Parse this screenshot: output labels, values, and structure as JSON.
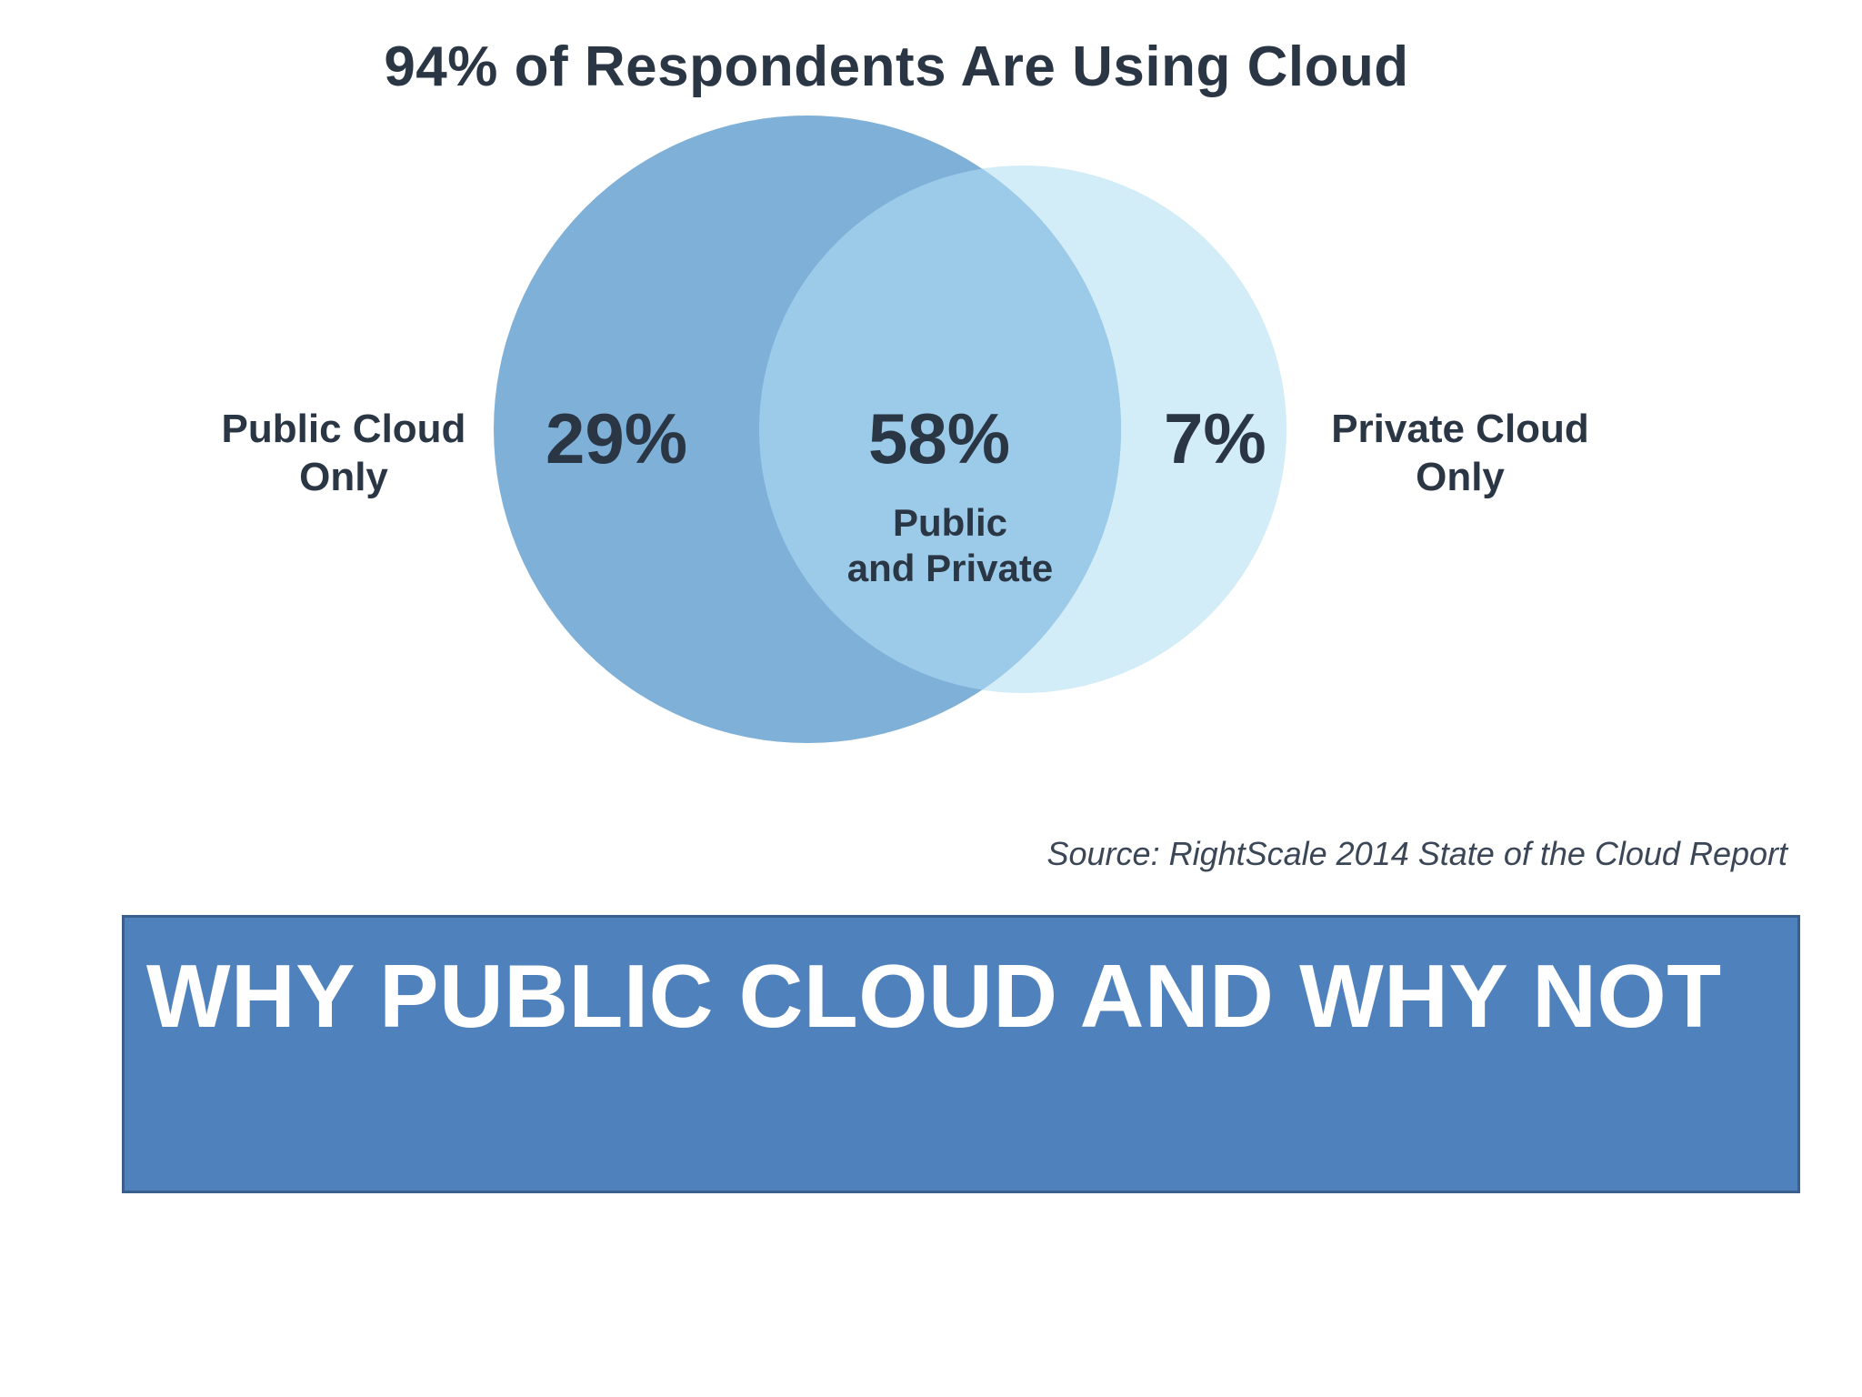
{
  "figure": {
    "title": "94% of Respondents Are Using Cloud",
    "source": "Source: RightScale 2014 State of the Cloud Report",
    "colors": {
      "public_circle": "#7fb0d8",
      "private_circle": "#d2ecf8",
      "overlap": "#9ccbea",
      "text": "#2b3645"
    },
    "regions": {
      "public_only": {
        "percent": "29%",
        "label_line1": "Public Cloud",
        "label_line2": "Only"
      },
      "both": {
        "percent": "58%",
        "label_line1": "Public",
        "label_line2": "and Private"
      },
      "private_only": {
        "percent": "7%",
        "label_line1": "Private Cloud",
        "label_line2": "Only"
      }
    }
  },
  "banner": {
    "text": "WHY PUBLIC CLOUD AND WHY NOT",
    "color": "#4f81bd"
  }
}
